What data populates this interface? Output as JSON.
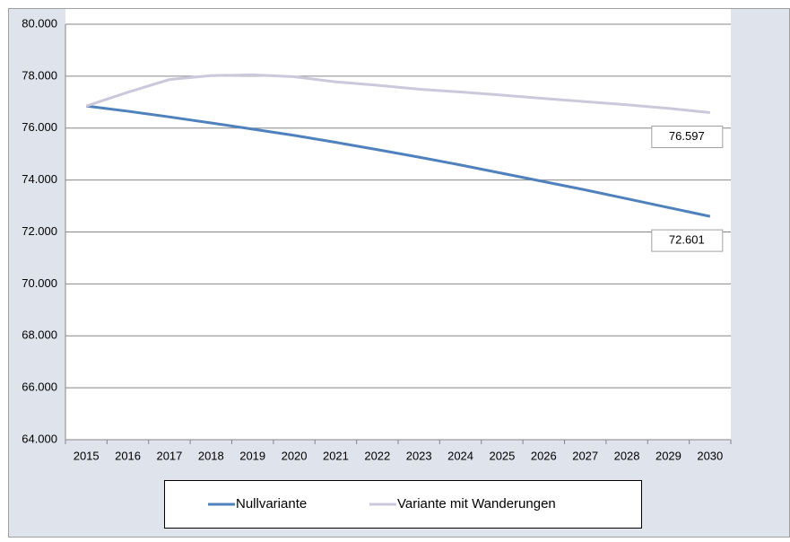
{
  "chart_data": {
    "type": "line",
    "categories": [
      "2015",
      "2016",
      "2017",
      "2018",
      "2019",
      "2020",
      "2021",
      "2022",
      "2023",
      "2024",
      "2025",
      "2026",
      "2027",
      "2028",
      "2029",
      "2030"
    ],
    "series": [
      {
        "name": "Nullvariante",
        "color": "#4f81bd",
        "values": [
          76850,
          76650,
          76430,
          76200,
          75960,
          75720,
          75450,
          75170,
          74880,
          74580,
          74260,
          73940,
          73620,
          73280,
          72940,
          72601
        ],
        "value_labels": [
          null,
          null,
          null,
          null,
          null,
          null,
          null,
          null,
          null,
          null,
          null,
          null,
          null,
          null,
          null,
          "72.601"
        ]
      },
      {
        "name": "Variante mit Wanderungen",
        "color": "#ccc8dc",
        "values": [
          76850,
          77380,
          77870,
          78020,
          78050,
          77980,
          77780,
          77650,
          77500,
          77390,
          77270,
          77140,
          77020,
          76900,
          76760,
          76597
        ],
        "value_labels": [
          null,
          null,
          null,
          null,
          null,
          null,
          null,
          null,
          null,
          null,
          null,
          null,
          null,
          null,
          null,
          "76.597"
        ]
      }
    ],
    "ylim": [
      64000,
      80000
    ],
    "yticks": [
      {
        "value": 64000,
        "label": "64.000"
      },
      {
        "value": 66000,
        "label": "66.000"
      },
      {
        "value": 68000,
        "label": "68.000"
      },
      {
        "value": 70000,
        "label": "70.000"
      },
      {
        "value": 72000,
        "label": "72.000"
      },
      {
        "value": 74000,
        "label": "74.000"
      },
      {
        "value": 76000,
        "label": "76.000"
      },
      {
        "value": 78000,
        "label": "78.000"
      },
      {
        "value": 80000,
        "label": "80.000"
      }
    ],
    "grid": true,
    "legend": "bottom"
  }
}
